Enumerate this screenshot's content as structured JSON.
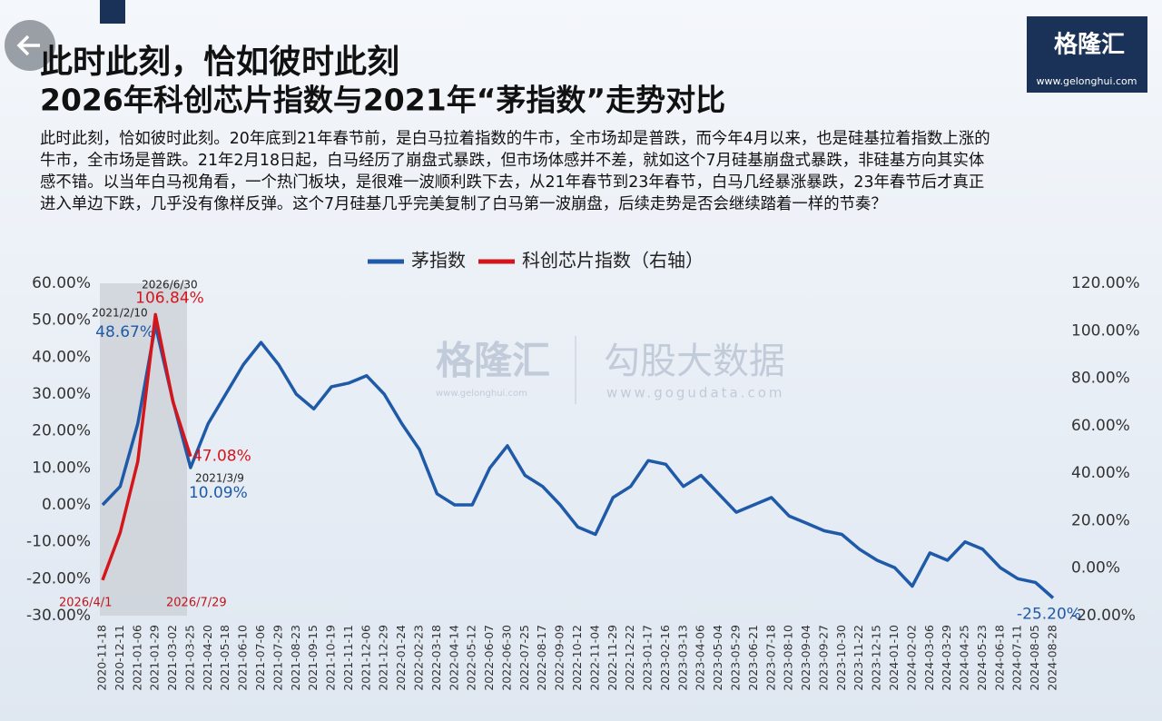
{
  "header": {
    "title_line1": "此时此刻，恰如彼时此刻",
    "title_line2": "2026年科创芯片指数与2021年“茅指数”走势对比",
    "paragraph": [
      "此时此刻，恰如彼时此刻。20年底到21年春节前，是白马拉着指数的牛市，全市场却是普跌，而今年4月以来，也是硅基拉着指数上涨的",
      "牛市，全市场是普跌。21年2月18日起，白马经历了崩盘式暴跌，但市场体感并不差，就如这个7月硅基崩盘式暴跌，非硅基方向其实体",
      "感不错。以当年白马视角看，一个热门板块，是很难一波顺利跌下去，从21年春节到23年春节，白马几经暴涨暴跌，23年春节后才真正",
      "进入单边下跌，几乎没有像样反弹。这个7月硅基几乎完美复制了白马第一波崩盘，后续走势是否会继续踏着一样的节奏？"
    ]
  },
  "logo": {
    "name": "格隆汇",
    "url": "www.gelonghui.com"
  },
  "watermark": {
    "left": "格隆汇",
    "left_url": "www.gelonghui.com",
    "right": "勾股大数据",
    "right_url": "www.gogudata.com"
  },
  "chart_data": {
    "type": "line",
    "categories": [
      "2020-11-18",
      "2020-12-11",
      "2021-01-06",
      "2021-01-29",
      "2021-03-02",
      "2021-03-25",
      "2021-04-20",
      "2021-05-18",
      "2021-06-10",
      "2021-07-06",
      "2021-07-29",
      "2021-08-23",
      "2021-09-15",
      "2021-10-19",
      "2021-11-11",
      "2021-12-06",
      "2021-12-29",
      "2022-01-24",
      "2022-02-23",
      "2022-03-18",
      "2022-04-14",
      "2022-05-12",
      "2022-06-07",
      "2022-06-30",
      "2022-07-25",
      "2022-08-17",
      "2022-09-09",
      "2022-10-12",
      "2022-11-04",
      "2022-11-29",
      "2022-12-22",
      "2023-01-17",
      "2023-02-16",
      "2023-03-13",
      "2023-04-06",
      "2023-05-04",
      "2023-05-29",
      "2023-06-21",
      "2023-07-18",
      "2023-08-10",
      "2023-09-04",
      "2023-09-27",
      "2023-10-30",
      "2023-11-22",
      "2023-12-15",
      "2024-01-10",
      "2024-02-02",
      "2024-03-06",
      "2024-03-29",
      "2024-04-25",
      "2024-05-23",
      "2024-06-18",
      "2024-07-11",
      "2024-08-05",
      "2024-08-28"
    ],
    "series": [
      {
        "name": "茅指数",
        "color": "#1f5aa8",
        "axis": "y",
        "values": [
          0,
          5,
          22,
          48.67,
          28,
          10.09,
          22,
          30,
          38,
          44,
          38,
          30,
          26,
          32,
          33,
          35,
          30,
          22,
          15,
          3,
          0,
          0,
          10,
          16,
          8,
          5,
          0,
          -6,
          -8,
          2,
          5,
          12,
          11,
          5,
          8,
          3,
          -2,
          0,
          2,
          -3,
          -5,
          -7,
          -8,
          -12,
          -15,
          -17,
          -22,
          -13,
          -15,
          -10,
          -12,
          -17,
          -20,
          -21,
          -25.2
        ],
        "value_labels": [
          null,
          null,
          null,
          "48.67%",
          null,
          "10.09%",
          null,
          null,
          null,
          null,
          null,
          null,
          null,
          null,
          null,
          null,
          null,
          null,
          null,
          null,
          null,
          null,
          null,
          null,
          null,
          null,
          null,
          null,
          null,
          null,
          null,
          null,
          null,
          null,
          null,
          null,
          null,
          null,
          null,
          null,
          null,
          null,
          null,
          null,
          null,
          null,
          null,
          null,
          null,
          null,
          null,
          null,
          null,
          null,
          "-25.20%"
        ]
      },
      {
        "name": "科创芯片指数（右轴）",
        "color": "#d4161c",
        "axis": "y2",
        "values": [
          -5,
          15,
          45,
          106.84,
          70,
          47.08,
          null,
          null,
          null,
          null,
          null,
          null,
          null,
          null,
          null,
          null,
          null,
          null,
          null,
          null,
          null,
          null,
          null,
          null,
          null,
          null,
          null,
          null,
          null,
          null,
          null,
          null,
          null,
          null,
          null,
          null,
          null,
          null,
          null,
          null,
          null,
          null,
          null,
          null,
          null,
          null,
          null,
          null,
          null,
          null,
          null,
          null,
          null,
          null,
          null
        ],
        "value_labels": [
          null,
          null,
          null,
          "106.84%",
          null,
          "47.08%",
          null,
          null,
          null,
          null,
          null,
          null,
          null,
          null,
          null,
          null,
          null,
          null,
          null,
          null,
          null,
          null,
          null,
          null,
          null,
          null,
          null,
          null,
          null,
          null,
          null,
          null,
          null,
          null,
          null,
          null,
          null,
          null,
          null,
          null,
          null,
          null,
          null,
          null,
          null,
          null,
          null,
          null,
          null,
          null,
          null,
          null,
          null,
          null,
          null
        ]
      }
    ],
    "annotations": [
      "2026/6/30",
      "2021/2/10",
      "2021/3/9",
      "2026/4/1",
      "2026/7/29"
    ],
    "ylim": [
      -30,
      60
    ],
    "yticks": [
      {
        "value": -30,
        "label": "-30.00%"
      },
      {
        "value": -20,
        "label": "-20.00%"
      },
      {
        "value": -10,
        "label": "-10.00%"
      },
      {
        "value": 0,
        "label": "0.00%"
      },
      {
        "value": 10,
        "label": "10.00%"
      },
      {
        "value": 20,
        "label": "20.00%"
      },
      {
        "value": 30,
        "label": "30.00%"
      },
      {
        "value": 40,
        "label": "40.00%"
      },
      {
        "value": 50,
        "label": "50.00%"
      },
      {
        "value": 60,
        "label": "60.00%"
      }
    ],
    "y2lim": [
      -20,
      120
    ],
    "y2ticks": [
      {
        "value": -20,
        "label": "-20.00%"
      },
      {
        "value": 0,
        "label": "0.00%"
      },
      {
        "value": 20,
        "label": "20.00%"
      },
      {
        "value": 40,
        "label": "40.00%"
      },
      {
        "value": 60,
        "label": "60.00%"
      },
      {
        "value": 80,
        "label": "80.00%"
      },
      {
        "value": 100,
        "label": "100.00%"
      },
      {
        "value": 120,
        "label": "120.00%"
      }
    ],
    "legend": "top",
    "grid": false
  }
}
